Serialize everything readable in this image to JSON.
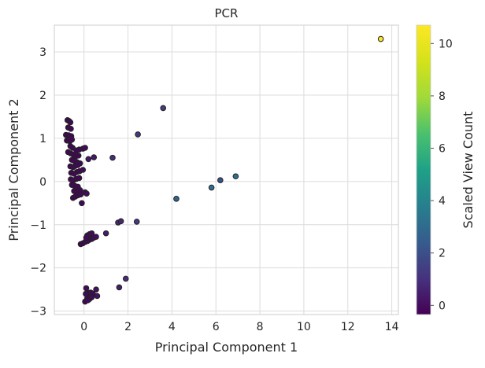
{
  "chart_data": {
    "type": "scatter",
    "title": "PCR",
    "xlabel": "Principal Component 1",
    "ylabel": "Principal Component 2",
    "xlim": [
      -1.35,
      14.3
    ],
    "ylim": [
      -3.08,
      3.62
    ],
    "xticks": [
      0,
      2,
      4,
      6,
      8,
      10,
      12,
      14
    ],
    "yticks": [
      -3,
      -2,
      -1,
      0,
      1,
      2,
      3
    ],
    "grid": true,
    "colorbar": {
      "label": "Scaled View Count",
      "range": [
        -0.35,
        10.7
      ],
      "ticks": [
        0,
        2,
        4,
        6,
        8,
        10
      ],
      "colormap": "viridis"
    },
    "points": [
      {
        "x": -0.75,
        "y": 1.42,
        "c": -0.2
      },
      {
        "x": -0.68,
        "y": 1.4,
        "c": -0.2
      },
      {
        "x": -0.62,
        "y": 1.37,
        "c": -0.2
      },
      {
        "x": -0.72,
        "y": 1.25,
        "c": -0.2
      },
      {
        "x": -0.6,
        "y": 1.22,
        "c": -0.2
      },
      {
        "x": -0.82,
        "y": 1.08,
        "c": -0.2
      },
      {
        "x": -0.7,
        "y": 1.07,
        "c": -0.2
      },
      {
        "x": -0.58,
        "y": 1.05,
        "c": -0.2
      },
      {
        "x": -0.78,
        "y": 0.95,
        "c": -0.2
      },
      {
        "x": -0.65,
        "y": 0.93,
        "c": -0.2
      },
      {
        "x": -0.55,
        "y": 0.97,
        "c": -0.2
      },
      {
        "x": -0.62,
        "y": 0.82,
        "c": -0.2
      },
      {
        "x": -0.52,
        "y": 0.78,
        "c": -0.2
      },
      {
        "x": -0.35,
        "y": 0.72,
        "c": -0.2
      },
      {
        "x": -0.22,
        "y": 0.74,
        "c": -0.2
      },
      {
        "x": -0.05,
        "y": 0.76,
        "c": -0.1
      },
      {
        "x": 0.05,
        "y": 0.78,
        "c": -0.1
      },
      {
        "x": -0.72,
        "y": 0.68,
        "c": -0.2
      },
      {
        "x": -0.6,
        "y": 0.65,
        "c": -0.2
      },
      {
        "x": -0.48,
        "y": 0.62,
        "c": -0.2
      },
      {
        "x": -0.38,
        "y": 0.58,
        "c": -0.2
      },
      {
        "x": -0.25,
        "y": 0.6,
        "c": -0.2
      },
      {
        "x": -0.55,
        "y": 0.5,
        "c": -0.2
      },
      {
        "x": -0.45,
        "y": 0.48,
        "c": -0.2
      },
      {
        "x": -0.32,
        "y": 0.45,
        "c": -0.2
      },
      {
        "x": -0.18,
        "y": 0.42,
        "c": -0.2
      },
      {
        "x": -0.62,
        "y": 0.35,
        "c": -0.2
      },
      {
        "x": -0.5,
        "y": 0.33,
        "c": -0.2
      },
      {
        "x": -0.4,
        "y": 0.36,
        "c": -0.2
      },
      {
        "x": -0.28,
        "y": 0.38,
        "c": -0.2
      },
      {
        "x": -0.58,
        "y": 0.2,
        "c": -0.2
      },
      {
        "x": -0.45,
        "y": 0.18,
        "c": -0.2
      },
      {
        "x": -0.32,
        "y": 0.22,
        "c": -0.2
      },
      {
        "x": -0.2,
        "y": 0.24,
        "c": -0.2
      },
      {
        "x": -0.05,
        "y": 0.27,
        "c": -0.1
      },
      {
        "x": -0.6,
        "y": 0.05,
        "c": -0.2
      },
      {
        "x": -0.48,
        "y": 0.03,
        "c": -0.2
      },
      {
        "x": -0.35,
        "y": 0.06,
        "c": -0.2
      },
      {
        "x": -0.22,
        "y": 0.08,
        "c": -0.2
      },
      {
        "x": -0.55,
        "y": -0.08,
        "c": -0.2
      },
      {
        "x": -0.42,
        "y": -0.1,
        "c": -0.2
      },
      {
        "x": -0.28,
        "y": -0.12,
        "c": -0.2
      },
      {
        "x": -0.45,
        "y": -0.22,
        "c": -0.2
      },
      {
        "x": -0.32,
        "y": -0.24,
        "c": -0.2
      },
      {
        "x": -0.18,
        "y": -0.2,
        "c": -0.2
      },
      {
        "x": 0.05,
        "y": -0.25,
        "c": -0.1
      },
      {
        "x": 0.12,
        "y": -0.28,
        "c": -0.1
      },
      {
        "x": -0.5,
        "y": -0.38,
        "c": -0.2
      },
      {
        "x": -0.4,
        "y": -0.35,
        "c": -0.2
      },
      {
        "x": -0.28,
        "y": -0.32,
        "c": -0.2
      },
      {
        "x": -0.15,
        "y": -0.3,
        "c": -0.2
      },
      {
        "x": -0.1,
        "y": -0.5,
        "c": -0.2
      },
      {
        "x": 0.2,
        "y": 0.52,
        "c": 0.2
      },
      {
        "x": 0.45,
        "y": 0.56,
        "c": 0.3
      },
      {
        "x": 1.3,
        "y": 0.55,
        "c": 0.9
      },
      {
        "x": 2.45,
        "y": 1.09,
        "c": 1.2
      },
      {
        "x": 3.6,
        "y": 1.7,
        "c": 1.4
      },
      {
        "x": 4.2,
        "y": -0.4,
        "c": 2.7
      },
      {
        "x": 5.8,
        "y": -0.14,
        "c": 3.0
      },
      {
        "x": 6.2,
        "y": 0.03,
        "c": 2.1
      },
      {
        "x": 6.9,
        "y": 0.12,
        "c": 3.2
      },
      {
        "x": 13.5,
        "y": 3.3,
        "c": 10.7
      },
      {
        "x": -0.15,
        "y": -1.45,
        "c": -0.2
      },
      {
        "x": -0.05,
        "y": -1.43,
        "c": -0.2
      },
      {
        "x": 0.05,
        "y": -1.4,
        "c": -0.1
      },
      {
        "x": 0.15,
        "y": -1.38,
        "c": -0.1
      },
      {
        "x": 0.25,
        "y": -1.35,
        "c": -0.1
      },
      {
        "x": 0.35,
        "y": -1.33,
        "c": -0.1
      },
      {
        "x": 0.45,
        "y": -1.3,
        "c": 0.0
      },
      {
        "x": 0.55,
        "y": -1.28,
        "c": 0.0
      },
      {
        "x": 0.15,
        "y": -1.25,
        "c": -0.1
      },
      {
        "x": 0.25,
        "y": -1.22,
        "c": -0.1
      },
      {
        "x": 0.35,
        "y": -1.2,
        "c": -0.1
      },
      {
        "x": 0.1,
        "y": -1.3,
        "c": -0.1
      },
      {
        "x": 1.0,
        "y": -1.2,
        "c": 0.4
      },
      {
        "x": 1.55,
        "y": -0.95,
        "c": 0.7
      },
      {
        "x": 1.68,
        "y": -0.92,
        "c": 0.7
      },
      {
        "x": 2.4,
        "y": -0.93,
        "c": 1.3
      },
      {
        "x": 1.9,
        "y": -2.25,
        "c": 0.9
      },
      {
        "x": 1.6,
        "y": -2.45,
        "c": 0.5
      },
      {
        "x": 0.55,
        "y": -2.5,
        "c": 0.1
      },
      {
        "x": 0.6,
        "y": -2.65,
        "c": 0.2
      },
      {
        "x": 0.1,
        "y": -2.47,
        "c": -0.1
      },
      {
        "x": 0.2,
        "y": -2.58,
        "c": -0.1
      },
      {
        "x": 0.3,
        "y": -2.57,
        "c": -0.1
      },
      {
        "x": 0.4,
        "y": -2.6,
        "c": -0.1
      },
      {
        "x": 0.15,
        "y": -2.7,
        "c": -0.1
      },
      {
        "x": 0.25,
        "y": -2.72,
        "c": -0.1
      },
      {
        "x": 0.35,
        "y": -2.68,
        "c": -0.1
      },
      {
        "x": 0.08,
        "y": -2.6,
        "c": -0.1
      },
      {
        "x": 0.05,
        "y": -2.78,
        "c": -0.2
      },
      {
        "x": 0.18,
        "y": -2.75,
        "c": -0.1
      }
    ]
  }
}
